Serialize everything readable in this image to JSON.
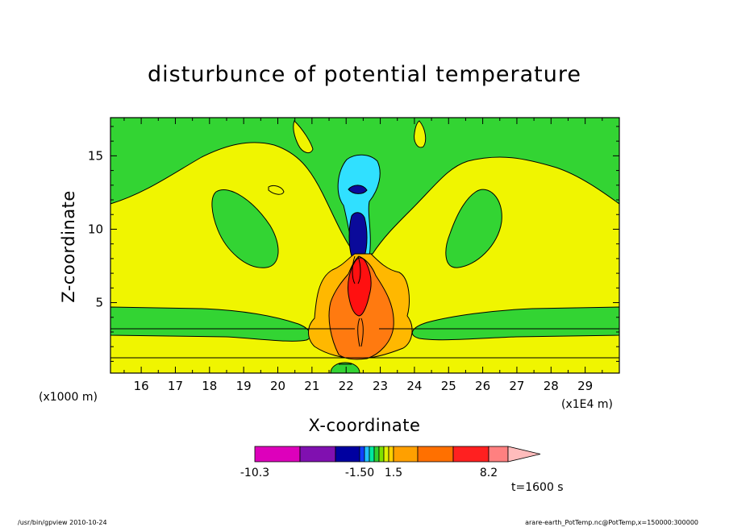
{
  "chart_data": {
    "type": "heatmap",
    "title": "disturbunce of potential temperature",
    "xlabel": "X-coordinate",
    "ylabel": "Z-coordinate",
    "x_unit_label": "(x1E4 m)",
    "y_unit_label": "(x1000 m)",
    "xlim": [
      15.1,
      30.0
    ],
    "ylim": [
      0.2,
      17.6
    ],
    "x_ticks": [
      16,
      17,
      18,
      19,
      20,
      21,
      22,
      23,
      24,
      25,
      26,
      27,
      28,
      29
    ],
    "y_ticks": [
      5,
      10,
      15
    ],
    "colorbar": {
      "tick_labels": [
        "-10.3",
        "-1.50",
        "1.5",
        "8.2"
      ],
      "colors": [
        "#dd00bb",
        "#8010b0",
        "#0000a0",
        "#1040ff",
        "#20c0ff",
        "#00e8a0",
        "#30d030",
        "#80e000",
        "#e0f000",
        "#ffd000",
        "#ffa000",
        "#ff7000",
        "#ff2020",
        "#ff8080",
        "#ffbcbc"
      ]
    },
    "fields": {
      "background": "#f0f500",
      "negative_weak": "#33d433",
      "negative_moderate": "#30e0ff",
      "negative_strong": "#0a0a9a",
      "positive_weak": "#ffb800",
      "positive_moderate": "#ff7a10",
      "positive_strong": "#ff1010"
    },
    "annotation": "t=1600 s"
  },
  "footer": {
    "left": "/usr/bin/gpview   2010-10-24",
    "right": "arare-earth_PotTemp.nc@PotTemp,x=150000:300000"
  }
}
